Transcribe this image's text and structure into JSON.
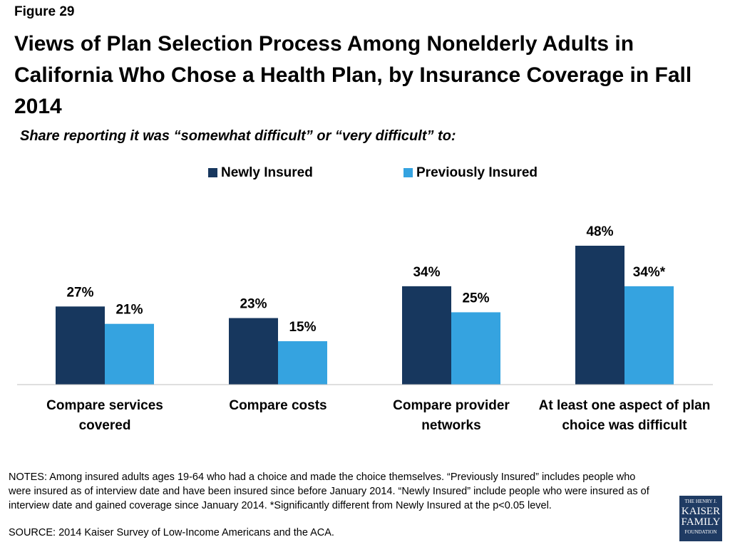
{
  "figure_label": "Figure 29",
  "chart_data": {
    "type": "bar",
    "title": "Views of Plan Selection Process Among Nonelderly Adults in California Who Chose a Health Plan, by Insurance Coverage in Fall 2014",
    "subtitle": "Share reporting it was “somewhat difficult” or “very difficult” to:",
    "categories": [
      "Compare services covered",
      "Compare costs",
      "Compare provider networks",
      "At least one aspect of plan choice was difficult"
    ],
    "series": [
      {
        "name": "Newly Insured",
        "color": "#17375e",
        "values": [
          27,
          23,
          34,
          48
        ],
        "value_labels": [
          "27%",
          "23%",
          "34%",
          "48%"
        ]
      },
      {
        "name": "Previously Insured",
        "color": "#35a3e0",
        "values": [
          21,
          15,
          25,
          34
        ],
        "value_labels": [
          "21%",
          "15%",
          "25%",
          "34%*"
        ]
      }
    ],
    "legend": "top"
  },
  "notes": "NOTES: Among insured adults ages 19-64 who had a choice and made the choice themselves. “Previously Insured” includes people who were insured as of interview date and have been insured since before January 2014. “Newly Insured” include people who were insured as of interview date and gained coverage since January 2014. *Significantly different from Newly Insured at the p<0.05 level.",
  "source": "SOURCE: 2014 Kaiser Survey of Low-Income Americans and the ACA.",
  "logo": [
    "THE HENRY J.",
    "KAISER",
    "FAMILY",
    "FOUNDATION"
  ]
}
